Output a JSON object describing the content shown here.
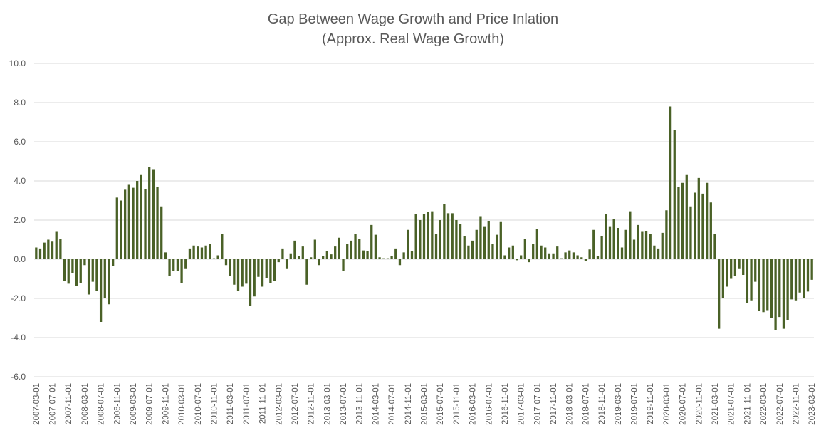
{
  "chart_data": {
    "type": "bar",
    "title": "Gap Between Wage Growth and Price Inlation",
    "subtitle": "(Approx. Real Wage Growth)",
    "xlabel": "",
    "ylabel": "",
    "ylim": [
      -6,
      10
    ],
    "yticks": [
      "10.0",
      "8.0",
      "6.0",
      "4.0",
      "2.0",
      "0.0",
      "-2.0",
      "-4.0",
      "-6.0"
    ],
    "grid": true,
    "bar_color": "#4a6127",
    "categories": [
      "2007-03-01",
      "2007-04-01",
      "2007-05-01",
      "2007-06-01",
      "2007-07-01",
      "2007-08-01",
      "2007-09-01",
      "2007-10-01",
      "2007-11-01",
      "2007-12-01",
      "2008-01-01",
      "2008-02-01",
      "2008-03-01",
      "2008-04-01",
      "2008-05-01",
      "2008-06-01",
      "2008-07-01",
      "2008-08-01",
      "2008-09-01",
      "2008-10-01",
      "2008-11-01",
      "2008-12-01",
      "2009-01-01",
      "2009-02-01",
      "2009-03-01",
      "2009-04-01",
      "2009-05-01",
      "2009-06-01",
      "2009-07-01",
      "2009-08-01",
      "2009-09-01",
      "2009-10-01",
      "2009-11-01",
      "2009-12-01",
      "2010-01-01",
      "2010-02-01",
      "2010-03-01",
      "2010-04-01",
      "2010-05-01",
      "2010-06-01",
      "2010-07-01",
      "2010-08-01",
      "2010-09-01",
      "2010-10-01",
      "2010-11-01",
      "2010-12-01",
      "2011-01-01",
      "2011-02-01",
      "2011-03-01",
      "2011-04-01",
      "2011-05-01",
      "2011-06-01",
      "2011-07-01",
      "2011-08-01",
      "2011-09-01",
      "2011-10-01",
      "2011-11-01",
      "2011-12-01",
      "2012-01-01",
      "2012-02-01",
      "2012-03-01",
      "2012-04-01",
      "2012-05-01",
      "2012-06-01",
      "2012-07-01",
      "2012-08-01",
      "2012-09-01",
      "2012-10-01",
      "2012-11-01",
      "2012-12-01",
      "2013-01-01",
      "2013-02-01",
      "2013-03-01",
      "2013-04-01",
      "2013-05-01",
      "2013-06-01",
      "2013-07-01",
      "2013-08-01",
      "2013-09-01",
      "2013-10-01",
      "2013-11-01",
      "2013-12-01",
      "2014-01-01",
      "2014-02-01",
      "2014-03-01",
      "2014-04-01",
      "2014-05-01",
      "2014-06-01",
      "2014-07-01",
      "2014-08-01",
      "2014-09-01",
      "2014-10-01",
      "2014-11-01",
      "2014-12-01",
      "2015-01-01",
      "2015-02-01",
      "2015-03-01",
      "2015-04-01",
      "2015-05-01",
      "2015-06-01",
      "2015-07-01",
      "2015-08-01",
      "2015-09-01",
      "2015-10-01",
      "2015-11-01",
      "2015-12-01",
      "2016-01-01",
      "2016-02-01",
      "2016-03-01",
      "2016-04-01",
      "2016-05-01",
      "2016-06-01",
      "2016-07-01",
      "2016-08-01",
      "2016-09-01",
      "2016-10-01",
      "2016-11-01",
      "2016-12-01",
      "2017-01-01",
      "2017-02-01",
      "2017-03-01",
      "2017-04-01",
      "2017-05-01",
      "2017-06-01",
      "2017-07-01",
      "2017-08-01",
      "2017-09-01",
      "2017-10-01",
      "2017-11-01",
      "2017-12-01",
      "2018-01-01",
      "2018-02-01",
      "2018-03-01",
      "2018-04-01",
      "2018-05-01",
      "2018-06-01",
      "2018-07-01",
      "2018-08-01",
      "2018-09-01",
      "2018-10-01",
      "2018-11-01",
      "2018-12-01",
      "2019-01-01",
      "2019-02-01",
      "2019-03-01",
      "2019-04-01",
      "2019-05-01",
      "2019-06-01",
      "2019-07-01",
      "2019-08-01",
      "2019-09-01",
      "2019-10-01",
      "2019-11-01",
      "2019-12-01",
      "2020-01-01",
      "2020-02-01",
      "2020-03-01",
      "2020-04-01",
      "2020-05-01",
      "2020-06-01",
      "2020-07-01",
      "2020-08-01",
      "2020-09-01",
      "2020-10-01",
      "2020-11-01",
      "2020-12-01",
      "2021-01-01",
      "2021-02-01",
      "2021-03-01",
      "2021-04-01",
      "2021-05-01",
      "2021-06-01",
      "2021-07-01",
      "2021-08-01",
      "2021-09-01",
      "2021-10-01",
      "2021-11-01",
      "2021-12-01",
      "2022-01-01",
      "2022-02-01",
      "2022-03-01",
      "2022-04-01",
      "2022-05-01",
      "2022-06-01",
      "2022-07-01",
      "2022-08-01",
      "2022-09-01",
      "2022-10-01",
      "2022-11-01",
      "2022-12-01",
      "2023-01-01",
      "2023-02-01",
      "2023-03-01"
    ],
    "values": [
      0.6,
      0.55,
      0.85,
      1.0,
      0.9,
      1.4,
      1.05,
      -1.1,
      -1.25,
      -0.7,
      -1.35,
      -1.2,
      -0.3,
      -1.8,
      -1.15,
      -1.6,
      -3.2,
      -2.0,
      -2.3,
      -0.35,
      3.15,
      3.0,
      3.55,
      3.8,
      3.65,
      4.0,
      4.3,
      3.6,
      4.7,
      4.6,
      3.7,
      2.7,
      0.35,
      -0.85,
      -0.6,
      -0.6,
      -1.2,
      -0.5,
      0.55,
      0.7,
      0.65,
      0.6,
      0.7,
      0.8,
      0.05,
      0.2,
      1.3,
      -0.3,
      -0.85,
      -1.3,
      -1.6,
      -1.4,
      -1.25,
      -2.4,
      -1.9,
      -0.9,
      -1.4,
      -0.95,
      -1.2,
      -1.1,
      -0.15,
      0.55,
      -0.5,
      0.3,
      0.95,
      0.15,
      0.65,
      -1.3,
      0.1,
      1.0,
      -0.3,
      0.15,
      0.4,
      0.25,
      0.65,
      1.1,
      -0.6,
      0.8,
      0.95,
      1.3,
      1.05,
      0.45,
      0.4,
      1.75,
      1.25,
      0.1,
      0.05,
      0.05,
      0.15,
      0.55,
      -0.3,
      0.35,
      1.5,
      0.4,
      2.3,
      2.0,
      2.3,
      2.4,
      2.45,
      1.3,
      2.0,
      2.8,
      2.35,
      2.35,
      2.0,
      1.8,
      1.2,
      0.7,
      0.95,
      1.5,
      2.2,
      1.65,
      1.95,
      0.8,
      1.25,
      1.9,
      0.2,
      0.6,
      0.7,
      -0.05,
      0.2,
      1.05,
      -0.15,
      0.8,
      1.55,
      0.7,
      0.6,
      0.3,
      0.3,
      0.65,
      0.05,
      0.35,
      0.45,
      0.35,
      0.2,
      0.1,
      -0.1,
      0.5,
      1.5,
      0.15,
      1.2,
      2.3,
      1.65,
      2.05,
      1.6,
      0.6,
      1.5,
      2.45,
      1.0,
      1.75,
      1.4,
      1.45,
      1.3,
      0.7,
      0.55,
      1.35,
      2.5,
      7.8,
      6.6,
      3.7,
      3.9,
      4.3,
      2.7,
      3.4,
      4.15,
      3.35,
      3.9,
      2.9,
      1.3,
      -3.55,
      -2.0,
      -1.4,
      -1.0,
      -0.85,
      -0.5,
      -0.8,
      -2.25,
      -2.1,
      -1.15,
      -2.65,
      -2.7,
      -2.6,
      -3.0,
      -3.6,
      -2.95,
      -3.55,
      -3.1,
      -2.05,
      -2.1,
      -1.7,
      -2.0,
      -1.65,
      -1.05
    ]
  }
}
